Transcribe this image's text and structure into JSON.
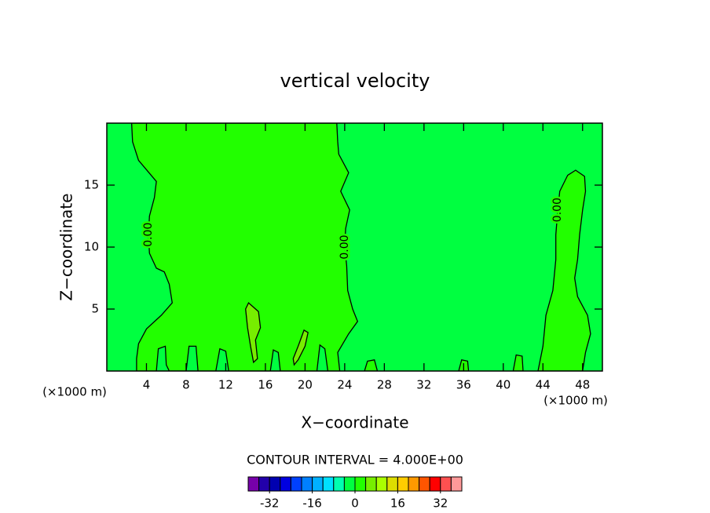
{
  "chart_data": {
    "type": "contour",
    "title": "vertical velocity",
    "xlabel": "X−coordinate",
    "ylabel": "Z−coordinate",
    "xunit": "(×1000 m)",
    "yunit": "(×1000 m)",
    "xlim": [
      0,
      50
    ],
    "ylim": [
      0,
      20
    ],
    "xticks": [
      4,
      8,
      12,
      16,
      20,
      24,
      28,
      32,
      36,
      40,
      44,
      48
    ],
    "yticks": [
      5,
      10,
      15
    ],
    "background_value": -2,
    "contours": [
      {
        "level": 0,
        "fill_value": 2,
        "labels": [
          "0.00",
          "0.00"
        ],
        "x": [
          2.5,
          2.6,
          3.2,
          5,
          4.8,
          4.3,
          4.2,
          4.3,
          5,
          5.8,
          6.3,
          6.6,
          5.5,
          4,
          3.2,
          3.0,
          3.0,
          23.5,
          23.3,
          24.4,
          25.3,
          24.8,
          24.3,
          24.2,
          24,
          24.1,
          24.5,
          23.6,
          24.4,
          23.4,
          23.3,
          23.2
        ],
        "y": [
          20,
          18.5,
          17,
          15.3,
          14,
          12.5,
          11,
          9.5,
          8.3,
          8,
          7,
          5.5,
          4.5,
          3.4,
          2.2,
          1,
          0,
          0,
          1.5,
          3,
          4,
          5,
          6.5,
          8.5,
          10,
          11.5,
          13,
          14.5,
          16,
          17.5,
          18.5,
          20
        ]
      },
      {
        "level": 0,
        "fill_value": 2,
        "labels": [
          "0.00"
        ],
        "x": [
          43.5,
          44,
          44.3,
          45,
          45.3,
          45.3,
          45.5,
          45.7,
          46.5,
          47.3,
          48.2,
          48.3,
          48,
          47.7,
          47.5,
          47.2,
          47.5,
          48.5,
          48.8,
          48.3,
          48
        ],
        "y": [
          0,
          2,
          4.5,
          6.5,
          9,
          11,
          13,
          14.5,
          15.8,
          16.2,
          15.7,
          14.5,
          13,
          11,
          9,
          7.5,
          6,
          4.5,
          3,
          1.5,
          0
        ]
      },
      {
        "level": 4,
        "fill_value": 6,
        "labels": [],
        "x": [
          14.3,
          15.3,
          15.5,
          15,
          15.2,
          14.8,
          14.5,
          14.2,
          14
        ],
        "y": [
          5.5,
          4.8,
          3.5,
          2.5,
          1,
          0.7,
          2,
          3.5,
          5
        ]
      },
      {
        "level": 4,
        "fill_value": 6,
        "labels": [],
        "x": [
          18.8,
          19.3,
          19.9,
          20.3,
          20,
          19.3,
          18.9
        ],
        "y": [
          1,
          2,
          3.3,
          3.1,
          2,
          0.9,
          0.5
        ]
      },
      {
        "level": 0,
        "fill_value": -2,
        "labels": [],
        "x": [
          5,
          5.2,
          5.9,
          6,
          6.3
        ],
        "y": [
          0,
          1.8,
          2,
          0.5,
          0
        ]
      },
      {
        "level": 0,
        "fill_value": -2,
        "labels": [],
        "x": [
          8,
          8.3,
          9,
          9.2
        ],
        "y": [
          0,
          2,
          2,
          0
        ]
      },
      {
        "level": 0,
        "fill_value": -2,
        "labels": [],
        "x": [
          11,
          11.4,
          12,
          12.3
        ],
        "y": [
          0,
          1.8,
          1.6,
          0
        ]
      },
      {
        "level": 0,
        "fill_value": -2,
        "labels": [],
        "x": [
          16.5,
          16.8,
          17.3,
          17.5
        ],
        "y": [
          0,
          1.7,
          1.5,
          0
        ]
      },
      {
        "level": 0,
        "fill_value": -2,
        "labels": [],
        "x": [
          21.2,
          21.5,
          22,
          22.3
        ],
        "y": [
          0,
          2.1,
          1.8,
          0
        ]
      },
      {
        "level": 0,
        "fill_value": 2,
        "labels": [],
        "x": [
          26,
          26.3,
          27,
          27.3
        ],
        "y": [
          0,
          0.8,
          0.9,
          0
        ]
      },
      {
        "level": 0,
        "fill_value": 2,
        "labels": [],
        "x": [
          35.5,
          35.8,
          36.4,
          36.5
        ],
        "y": [
          0,
          0.9,
          0.8,
          0
        ]
      },
      {
        "level": 0,
        "fill_value": 2,
        "labels": [],
        "x": [
          41,
          41.3,
          41.9,
          42
        ],
        "y": [
          0,
          1.3,
          1.2,
          0
        ]
      }
    ],
    "contour_interval_text": "CONTOUR INTERVAL = 4.000E+00",
    "colorbar": {
      "levels": [
        -40,
        -36,
        -32,
        -28,
        -24,
        -20,
        -16,
        -12,
        -8,
        -4,
        0,
        4,
        8,
        12,
        16,
        20,
        24,
        28,
        32,
        36,
        40
      ],
      "colors": [
        "#7700aa",
        "#2200aa",
        "#0000b0",
        "#0000e0",
        "#0040ff",
        "#0080ff",
        "#00b0ff",
        "#00e0ff",
        "#00ffb0",
        "#00ff40",
        "#22ff00",
        "#77ee00",
        "#aaff00",
        "#dddd00",
        "#ffcc00",
        "#ff9900",
        "#ff5500",
        "#ff0000",
        "#ff5050",
        "#ff9999"
      ],
      "ticks": [
        -32,
        -16,
        0,
        16,
        32
      ]
    }
  }
}
